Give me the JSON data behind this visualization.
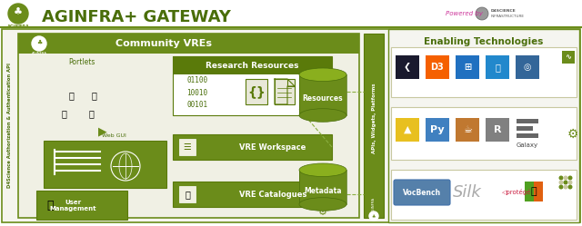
{
  "title": "AGINFRA+ GATEWAY",
  "title_color": "#5a7a10",
  "bg_color": "#ffffff",
  "olive": "#6b8c1a",
  "dark_green": "#4a6e0a",
  "light_green": "#8aaf1e",
  "medium_green": "#5a7a0a",
  "enabling_title": "Enabling Technologies",
  "community_label": "Community VREs",
  "research_resources": "Research Resources",
  "portlets_label": "Portlets",
  "web_gui_label": "Web GUI",
  "vre_workspace": "VRE Workspace",
  "vre_catalogues": "VRE Catalogues",
  "resources_label": "Resources",
  "metadata_label": "Metadata",
  "user_management": "User\nManagement",
  "d4science_label": "D4Science Authorization & Authentication API",
  "apis_label": "APIs, Widgets, Platforms",
  "aginfra_label": "AGINFRA",
  "powered_by": "Powered by",
  "code_text": "01100\n10010\n00101"
}
